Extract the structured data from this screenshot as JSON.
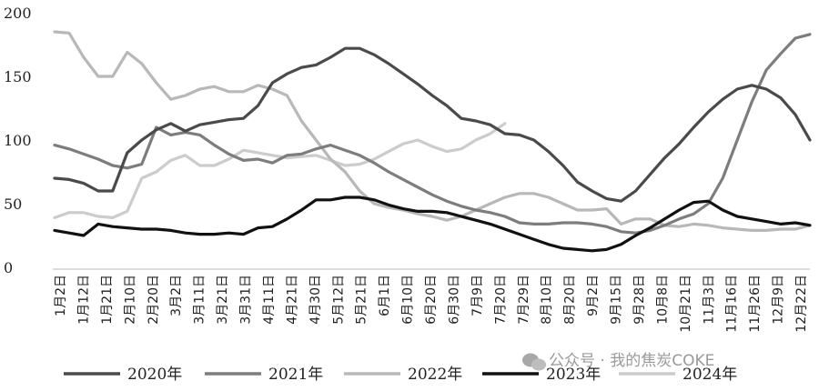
{
  "chart_data": {
    "type": "line",
    "ylim": [
      0,
      200
    ],
    "yticks": [
      0,
      50,
      100,
      150,
      200
    ],
    "x_labels": [
      "1月2日",
      "1月12日",
      "1月21日",
      "2月10日",
      "2月20日",
      "3月2日",
      "3月11日",
      "3月21日",
      "3月31日",
      "4月11日",
      "4月21日",
      "4月30日",
      "5月12日",
      "5月21日",
      "6月1日",
      "6月10日",
      "6月20日",
      "6月30日",
      "7月9日",
      "7月20日",
      "7月29日",
      "8月10日",
      "8月20日",
      "9月2日",
      "9月15日",
      "9月28日",
      "10月8日",
      "10月21日",
      "11月3日",
      "11月16日",
      "11月26日",
      "12月9日",
      "12月22日"
    ],
    "legend_position": "bottom",
    "series": [
      {
        "name": "2020年",
        "color": "#4a4a4a",
        "values": [
          70,
          69,
          66,
          60,
          60,
          90,
          100,
          108,
          113,
          107,
          112,
          114,
          116,
          117,
          127,
          145,
          152,
          157,
          159,
          165,
          172,
          172,
          167,
          160,
          152,
          144,
          135,
          127,
          117,
          115,
          112,
          105,
          104,
          100,
          91,
          80,
          67,
          60,
          54,
          52,
          60,
          73,
          86,
          97,
          110,
          122,
          132,
          140,
          143,
          140,
          133,
          120,
          100
        ]
      },
      {
        "name": "2021年",
        "color": "#7d7d7d",
        "values": [
          96,
          93,
          89,
          85,
          80,
          78,
          81,
          110,
          104,
          106,
          104,
          96,
          89,
          84,
          85,
          82,
          88,
          89,
          93,
          96,
          92,
          88,
          82,
          75,
          69,
          63,
          57,
          52,
          48,
          45,
          43,
          40,
          35,
          34,
          34,
          35,
          35,
          34,
          32,
          28,
          27,
          29,
          33,
          38,
          42,
          50,
          70,
          100,
          130,
          155,
          168,
          180,
          183
        ]
      },
      {
        "name": "2022年",
        "color": "#b8b8b8",
        "values": [
          185,
          184,
          165,
          150,
          150,
          169,
          160,
          145,
          132,
          135,
          140,
          142,
          138,
          138,
          143,
          140,
          135,
          115,
          100,
          85,
          75,
          60,
          50,
          47,
          45,
          42,
          40,
          37,
          40,
          45,
          50,
          55,
          58,
          58,
          55,
          50,
          45,
          45,
          46,
          34,
          38,
          38,
          33,
          32,
          34,
          33,
          31,
          30,
          29,
          29,
          30,
          30,
          33
        ]
      },
      {
        "name": "2023年",
        "color": "#111111",
        "values": [
          29,
          27,
          25,
          34,
          32,
          31,
          30,
          30,
          29,
          27,
          26,
          26,
          27,
          26,
          31,
          32,
          38,
          45,
          53,
          53,
          55,
          55,
          53,
          49,
          46,
          44,
          44,
          43,
          40,
          37,
          34,
          30,
          26,
          22,
          18,
          15,
          14,
          13,
          14,
          18,
          25,
          31,
          38,
          45,
          51,
          52,
          45,
          40,
          38,
          36,
          34,
          35,
          33
        ]
      },
      {
        "name": "2024年",
        "color": "#cccccc",
        "values": [
          39,
          43,
          43,
          40,
          39,
          44,
          70,
          75,
          84,
          88,
          80,
          80,
          85,
          92,
          90,
          88,
          86,
          87,
          88,
          84,
          80,
          81,
          85,
          91,
          97,
          100,
          95,
          91,
          93,
          100,
          105,
          113
        ]
      }
    ]
  },
  "watermark": "公众号 · 我的焦炭COKE"
}
